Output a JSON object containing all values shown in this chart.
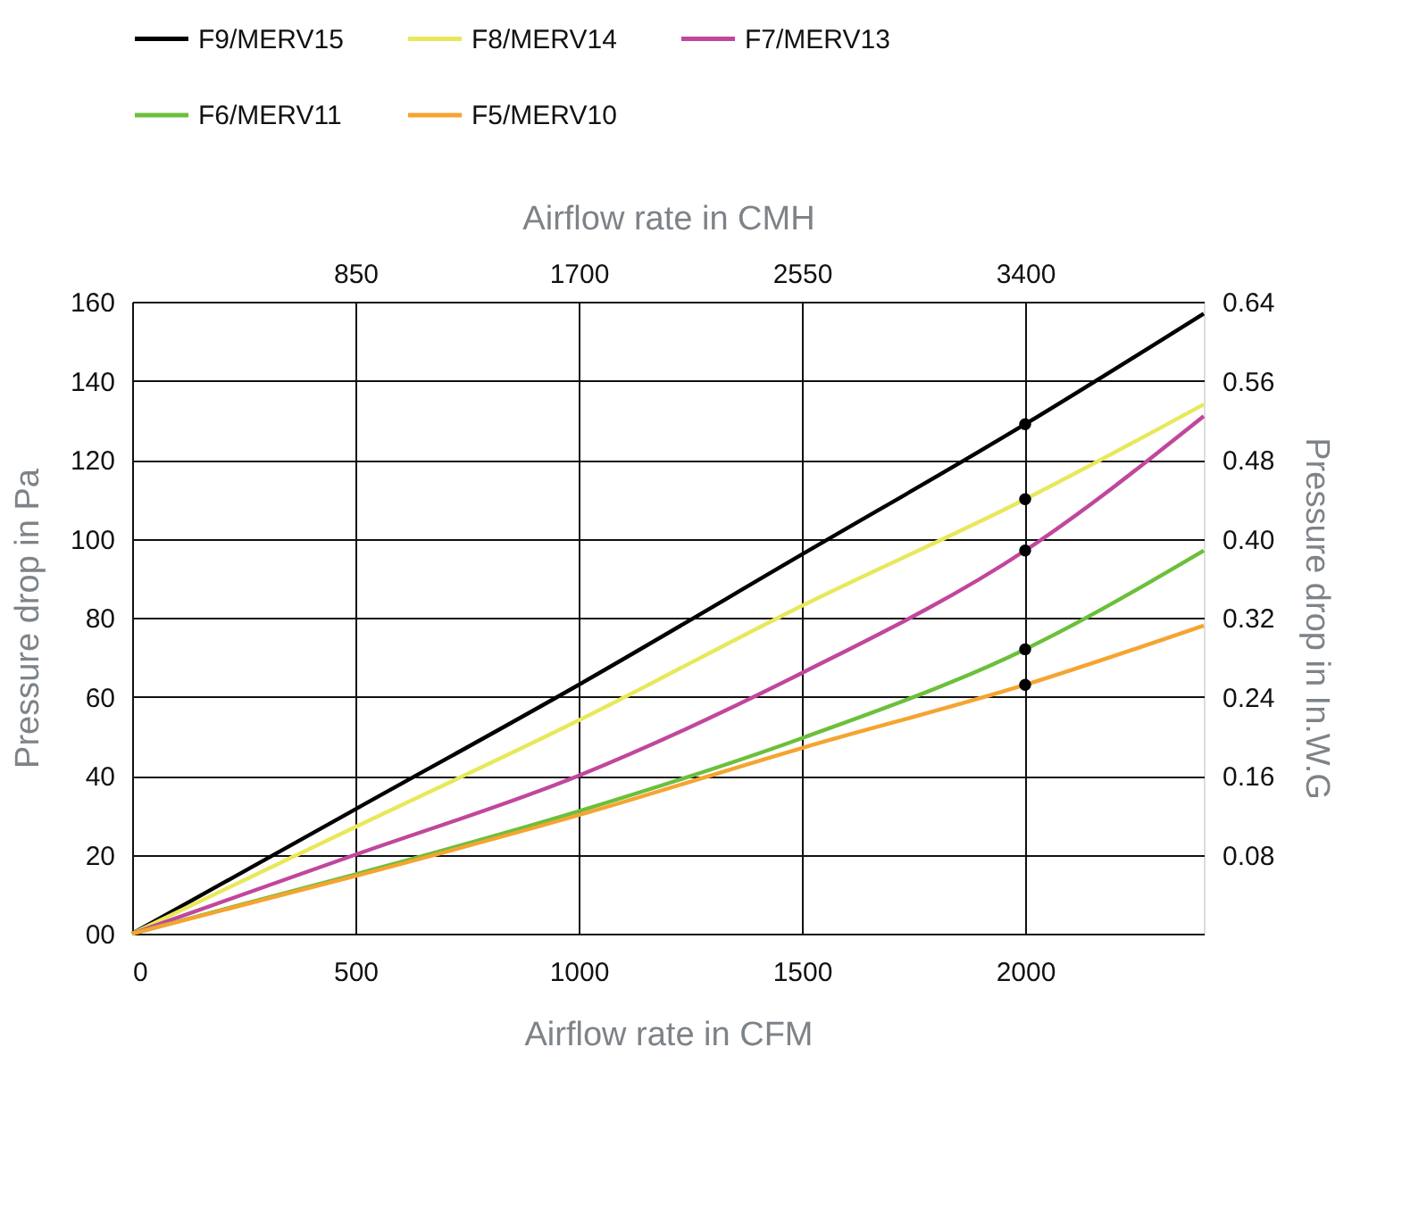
{
  "chart_data": {
    "type": "line",
    "xlabel": "Airflow rate in CFM",
    "ylabel": "Pressure drop in Pa",
    "y2label": "Pressure drop in In.W.G",
    "x2label": "Airflow rate in CMH",
    "x": [
      0,
      500,
      1000,
      1500,
      2000,
      2400
    ],
    "series": [
      {
        "name": "F9/MERV15",
        "color": "#000000",
        "values": [
          0,
          31.5,
          63,
          96,
          129,
          157
        ]
      },
      {
        "name": "F8/MERV14",
        "color": "#e8e85a",
        "values": [
          0,
          27,
          54,
          83,
          110,
          134
        ]
      },
      {
        "name": "F7/MERV13",
        "color": "#c0479c",
        "values": [
          0,
          20,
          40,
          66,
          97,
          131
        ]
      },
      {
        "name": "F6/MERV11",
        "color": "#6cbf3c",
        "values": [
          0,
          15,
          31,
          49.5,
          72,
          97
        ]
      },
      {
        "name": "F5/MERV10",
        "color": "#f5a431",
        "values": [
          0,
          14.6,
          30,
          47,
          63,
          78
        ]
      },
      {
        "type": "scatter",
        "color": "#000000",
        "values": [
          null,
          null,
          null,
          null,
          129,
          null
        ]
      },
      {
        "type": "scatter",
        "color": "#000000",
        "values": [
          null,
          null,
          null,
          null,
          110,
          null
        ]
      },
      {
        "type": "scatter",
        "color": "#000000",
        "values": [
          null,
          null,
          null,
          null,
          97,
          null
        ]
      },
      {
        "type": "scatter",
        "color": "#000000",
        "values": [
          null,
          null,
          null,
          null,
          72,
          null
        ]
      },
      {
        "type": "scatter",
        "color": "#000000",
        "values": [
          null,
          null,
          null,
          null,
          63,
          null
        ]
      }
    ],
    "xlim": [
      0,
      2400
    ],
    "xticks": [
      0,
      500,
      1000,
      1500,
      2000
    ],
    "ylim": [
      0,
      160
    ],
    "yticks": [
      {
        "value": 0,
        "label": "00"
      },
      20,
      40,
      60,
      80,
      100,
      120,
      140,
      160
    ],
    "x2lim": [
      0,
      4080
    ],
    "x2ticks": [
      850,
      1700,
      2550,
      3400
    ],
    "y2lim": [
      0,
      0.64
    ],
    "y2ticks": [
      0.08,
      0.16,
      0.24,
      0.32,
      {
        "value": 0.4,
        "label": "0.40"
      },
      0.48,
      0.56,
      0.64
    ],
    "grid": true,
    "legend": "top",
    "line_style": "solid"
  }
}
